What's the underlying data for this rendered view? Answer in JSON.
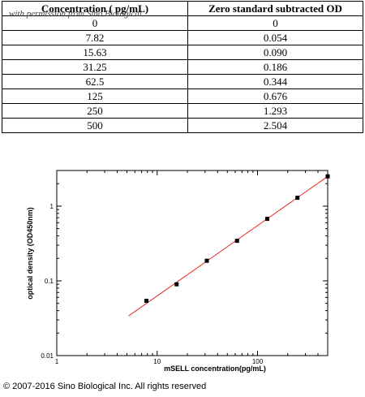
{
  "table": {
    "headers": [
      "Concentration ( pg/mL)",
      "Zero standard subtracted OD"
    ],
    "watermark": "with permission from Sino Biological",
    "rows": [
      [
        "0",
        "0"
      ],
      [
        "7.82",
        "0.054"
      ],
      [
        "15.63",
        "0.090"
      ],
      [
        "31.25",
        "0.186"
      ],
      [
        "62.5",
        "0.344"
      ],
      [
        "125",
        "0.676"
      ],
      [
        "250",
        "1.293"
      ],
      [
        "500",
        "2.504"
      ]
    ]
  },
  "chart_data": {
    "type": "scatter",
    "xlabel": "mSELL  concentration(pg/mL)",
    "ylabel": "optical density (OD450nm)",
    "x_scale": "log",
    "y_scale": "log",
    "xlim": [
      1,
      500
    ],
    "ylim": [
      0.01,
      3
    ],
    "x_ticks": [
      "1",
      "10",
      "100"
    ],
    "y_ticks": [
      "0.01",
      "0.1",
      "1"
    ],
    "series": [
      {
        "x": [
          7.82,
          15.63,
          31.25,
          62.5,
          125,
          250,
          500
        ],
        "y": [
          0.054,
          0.09,
          0.186,
          0.344,
          0.676,
          1.293,
          2.504
        ],
        "marker_color": "#000000"
      }
    ],
    "fit_line": {
      "x": [
        5.2,
        500
      ],
      "y": [
        0.034,
        2.5
      ],
      "color": "#e8261e"
    },
    "grid": false
  },
  "footer": {
    "copyright": "© 2007-2016 Sino Biological Inc. All rights reserved"
  }
}
